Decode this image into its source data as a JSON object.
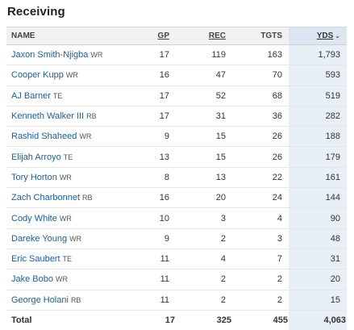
{
  "title": "Receiving",
  "columns": {
    "name": "NAME",
    "gp": "GP",
    "rec": "REC",
    "tgts": "TGTS",
    "yds": "YDS"
  },
  "sorted_column": "YDS",
  "rows": [
    {
      "name": "Jaxon Smith-Njigba",
      "pos": "WR",
      "gp": "17",
      "rec": "119",
      "tgts": "163",
      "yds": "1,793"
    },
    {
      "name": "Cooper Kupp",
      "pos": "WR",
      "gp": "16",
      "rec": "47",
      "tgts": "70",
      "yds": "593"
    },
    {
      "name": "AJ Barner",
      "pos": "TE",
      "gp": "17",
      "rec": "52",
      "tgts": "68",
      "yds": "519"
    },
    {
      "name": "Kenneth Walker III",
      "pos": "RB",
      "gp": "17",
      "rec": "31",
      "tgts": "36",
      "yds": "282"
    },
    {
      "name": "Rashid Shaheed",
      "pos": "WR",
      "gp": "9",
      "rec": "15",
      "tgts": "26",
      "yds": "188"
    },
    {
      "name": "Elijah Arroyo",
      "pos": "TE",
      "gp": "13",
      "rec": "15",
      "tgts": "26",
      "yds": "179"
    },
    {
      "name": "Tory Horton",
      "pos": "WR",
      "gp": "8",
      "rec": "13",
      "tgts": "22",
      "yds": "161"
    },
    {
      "name": "Zach Charbonnet",
      "pos": "RB",
      "gp": "16",
      "rec": "20",
      "tgts": "24",
      "yds": "144"
    },
    {
      "name": "Cody White",
      "pos": "WR",
      "gp": "10",
      "rec": "3",
      "tgts": "4",
      "yds": "90"
    },
    {
      "name": "Dareke Young",
      "pos": "WR",
      "gp": "9",
      "rec": "2",
      "tgts": "3",
      "yds": "48"
    },
    {
      "name": "Eric Saubert",
      "pos": "TE",
      "gp": "11",
      "rec": "4",
      "tgts": "7",
      "yds": "31"
    },
    {
      "name": "Jake Bobo",
      "pos": "WR",
      "gp": "11",
      "rec": "2",
      "tgts": "2",
      "yds": "20"
    },
    {
      "name": "George Holani",
      "pos": "RB",
      "gp": "11",
      "rec": "2",
      "tgts": "2",
      "yds": "15"
    }
  ],
  "total": {
    "label": "Total",
    "gp": "17",
    "rec": "325",
    "tgts": "455",
    "yds": "4,063"
  },
  "colors": {
    "link": "#1a5ea8",
    "sorted_header": "#dce6f2",
    "sorted_cell": "#e9eff7",
    "header_bg": "#f1f1f1"
  }
}
